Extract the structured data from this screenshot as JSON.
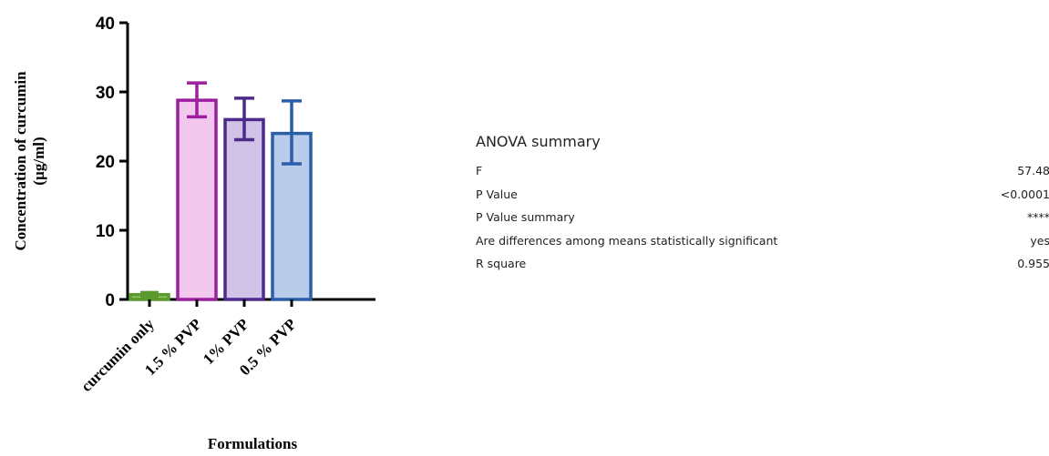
{
  "chart_data": {
    "type": "bar",
    "categories": [
      "curcumin only",
      "1.5 % PVP",
      "1% PVP",
      "0.5 % PVP"
    ],
    "values": [
      0.7,
      28.8,
      26.0,
      24.0
    ],
    "error": [
      {
        "low": 0.4,
        "high": 1.0
      },
      {
        "low": 26.4,
        "high": 31.3
      },
      {
        "low": 23.1,
        "high": 29.1
      },
      {
        "low": 19.6,
        "high": 28.7
      }
    ],
    "colors": {
      "stroke": [
        "#5a9a2e",
        "#9b1f9f",
        "#4b2a8c",
        "#2a5ea8"
      ],
      "fill": [
        "#8cc063",
        "#f3c8ef",
        "#d1c3e8",
        "#b9cdea"
      ]
    },
    "xlabel": "Formulations",
    "ylabel": [
      "Concentration of curcumin",
      "(µg/ml)"
    ],
    "ylim": [
      0,
      40
    ],
    "yticks": [
      "0",
      "10",
      "20",
      "30",
      "40"
    ],
    "grid": false
  },
  "anova": {
    "title": "ANOVA summary",
    "rows": [
      {
        "label": "F",
        "value": "57.48"
      },
      {
        "label": "P Value",
        "value": "<0.0001"
      },
      {
        "label": "P Value summary",
        "value": "****"
      },
      {
        "label": "Are differences among means statistically significant",
        "value": "yes"
      },
      {
        "label": "R square",
        "value": "0.955"
      }
    ]
  }
}
